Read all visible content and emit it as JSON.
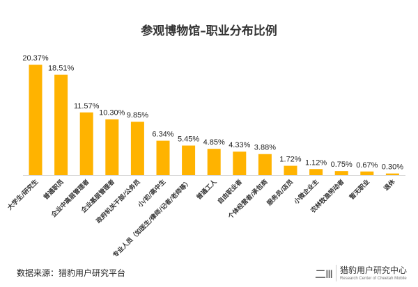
{
  "chart_data": {
    "type": "bar",
    "title": "参观博物馆–职业分布比例",
    "categories": [
      "大学生/研究生",
      "普通职员",
      "企业中高层管理者",
      "企业基层管理者",
      "政府机关干部/公务员",
      "小/初/高中生",
      "专业人员（如医生/律师/记者/老师等）",
      "普通工人",
      "自由职业者",
      "个体经营者/承包商",
      "服务员/店员",
      "小微企业主",
      "农林牧渔劳动者",
      "暂无职业",
      "退休"
    ],
    "values": [
      20.37,
      18.51,
      11.57,
      10.3,
      9.85,
      6.34,
      5.45,
      4.85,
      4.33,
      3.88,
      1.72,
      1.12,
      0.75,
      0.67,
      0.3
    ],
    "labels": [
      "20.37%",
      "18.51%",
      "11.57%",
      "10.30%",
      "9.85%",
      "6.34%",
      "5.45%",
      "4.85%",
      "4.33%",
      "3.88%",
      "1.72%",
      "1.12%",
      "0.75%",
      "0.67%",
      "0.30%"
    ],
    "ylim": [
      0,
      22
    ],
    "grid": false,
    "bar_color": "#FFB300"
  },
  "footer": {
    "source": "数据来源：猎豹用户研究平台",
    "logo_cn": "猎豹用户研究中心",
    "logo_en": "Research Center of Cheetah Mobile"
  }
}
